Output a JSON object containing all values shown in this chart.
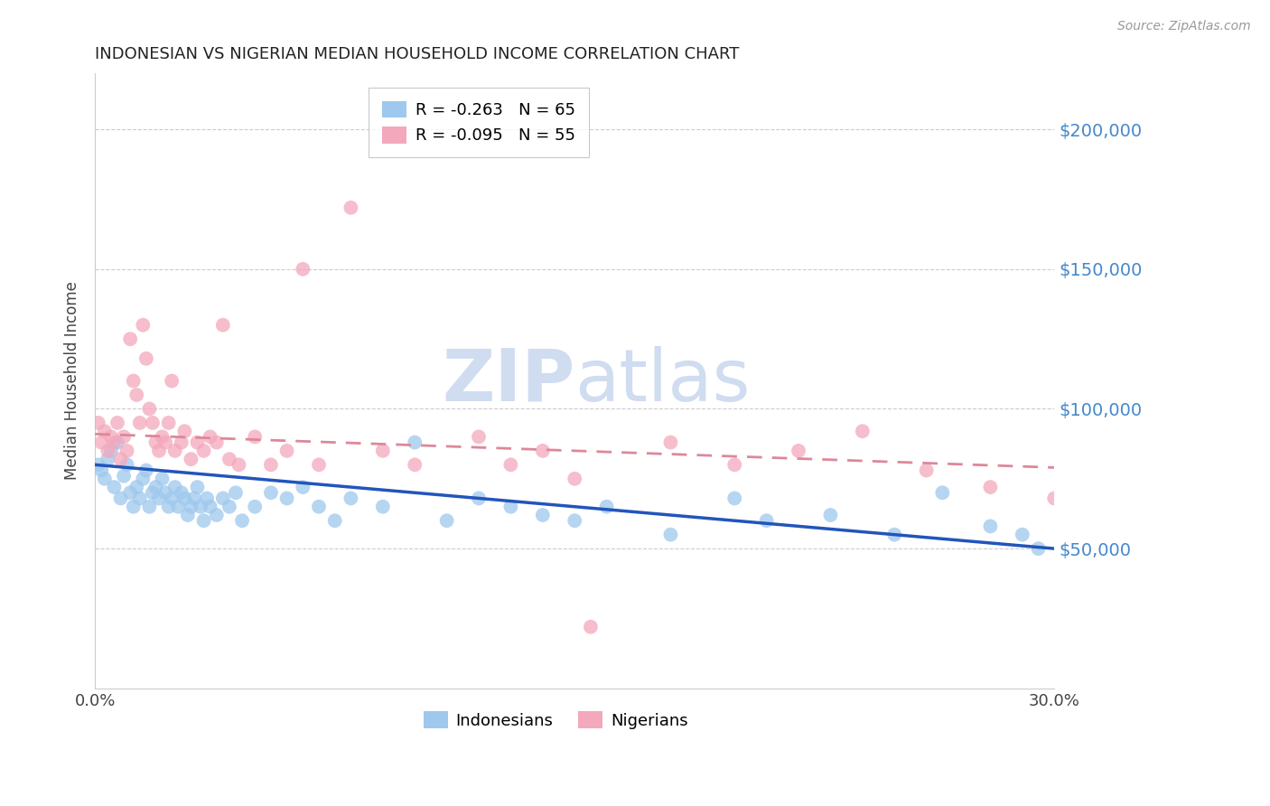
{
  "title": "INDONESIAN VS NIGERIAN MEDIAN HOUSEHOLD INCOME CORRELATION CHART",
  "source_text": "Source: ZipAtlas.com",
  "ylabel": "Median Household Income",
  "xlim": [
    0.0,
    0.3
  ],
  "ylim": [
    0,
    220000
  ],
  "yticks": [
    0,
    50000,
    100000,
    150000,
    200000
  ],
  "ytick_labels": [
    "",
    "$50,000",
    "$100,000",
    "$150,000",
    "$200,000"
  ],
  "xticks": [
    0.0,
    0.05,
    0.1,
    0.15,
    0.2,
    0.25,
    0.3
  ],
  "xtick_labels": [
    "0.0%",
    "",
    "",
    "",
    "",
    "",
    "30.0%"
  ],
  "blue_color": "#9EC8ED",
  "pink_color": "#F4A8BC",
  "blue_line_color": "#2255BB",
  "pink_line_color": "#DD8899",
  "axis_label_color": "#4488CC",
  "watermark_color": "#D0DCF0",
  "legend_R1": "R = -0.263",
  "legend_N1": "N = 65",
  "legend_R2": "R = -0.095",
  "legend_N2": "N = 55",
  "indonesian_label": "Indonesians",
  "nigerian_label": "Nigerians",
  "indonesian_x": [
    0.001,
    0.002,
    0.003,
    0.004,
    0.005,
    0.006,
    0.007,
    0.008,
    0.009,
    0.01,
    0.011,
    0.012,
    0.013,
    0.014,
    0.015,
    0.016,
    0.017,
    0.018,
    0.019,
    0.02,
    0.021,
    0.022,
    0.023,
    0.024,
    0.025,
    0.026,
    0.027,
    0.028,
    0.029,
    0.03,
    0.031,
    0.032,
    0.033,
    0.034,
    0.035,
    0.036,
    0.038,
    0.04,
    0.042,
    0.044,
    0.046,
    0.05,
    0.055,
    0.06,
    0.065,
    0.07,
    0.075,
    0.08,
    0.09,
    0.1,
    0.11,
    0.12,
    0.13,
    0.14,
    0.15,
    0.16,
    0.18,
    0.2,
    0.21,
    0.23,
    0.25,
    0.265,
    0.28,
    0.29,
    0.295
  ],
  "indonesian_y": [
    80000,
    78000,
    75000,
    82000,
    85000,
    72000,
    88000,
    68000,
    76000,
    80000,
    70000,
    65000,
    72000,
    68000,
    75000,
    78000,
    65000,
    70000,
    72000,
    68000,
    75000,
    70000,
    65000,
    68000,
    72000,
    65000,
    70000,
    68000,
    62000,
    65000,
    68000,
    72000,
    65000,
    60000,
    68000,
    65000,
    62000,
    68000,
    65000,
    70000,
    60000,
    65000,
    70000,
    68000,
    72000,
    65000,
    60000,
    68000,
    65000,
    88000,
    60000,
    68000,
    65000,
    62000,
    60000,
    65000,
    55000,
    68000,
    60000,
    62000,
    55000,
    70000,
    58000,
    55000,
    50000
  ],
  "nigerian_x": [
    0.001,
    0.002,
    0.003,
    0.004,
    0.005,
    0.006,
    0.007,
    0.008,
    0.009,
    0.01,
    0.011,
    0.012,
    0.013,
    0.014,
    0.015,
    0.016,
    0.017,
    0.018,
    0.019,
    0.02,
    0.021,
    0.022,
    0.023,
    0.024,
    0.025,
    0.027,
    0.028,
    0.03,
    0.032,
    0.034,
    0.036,
    0.038,
    0.04,
    0.042,
    0.045,
    0.05,
    0.055,
    0.06,
    0.065,
    0.07,
    0.08,
    0.09,
    0.1,
    0.12,
    0.13,
    0.14,
    0.15,
    0.155,
    0.18,
    0.2,
    0.22,
    0.24,
    0.26,
    0.28,
    0.3
  ],
  "nigerian_y": [
    95000,
    88000,
    92000,
    85000,
    90000,
    88000,
    95000,
    82000,
    90000,
    85000,
    125000,
    110000,
    105000,
    95000,
    130000,
    118000,
    100000,
    95000,
    88000,
    85000,
    90000,
    88000,
    95000,
    110000,
    85000,
    88000,
    92000,
    82000,
    88000,
    85000,
    90000,
    88000,
    130000,
    82000,
    80000,
    90000,
    80000,
    85000,
    150000,
    80000,
    172000,
    85000,
    80000,
    90000,
    80000,
    85000,
    75000,
    22000,
    88000,
    80000,
    85000,
    92000,
    78000,
    72000,
    68000
  ],
  "blue_intercept": 80000,
  "blue_slope": -100000,
  "pink_intercept": 91000,
  "pink_slope": -40000
}
